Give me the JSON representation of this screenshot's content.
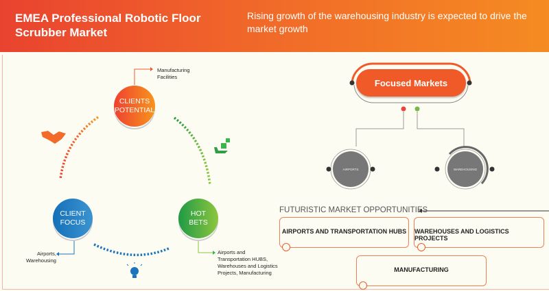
{
  "header": {
    "title": "EMEA Professional Robotic Floor Scrubber Market",
    "subtitle": "Rising growth of the warehousing industry is expected to drive the market growth"
  },
  "cycle": {
    "clients_potential": {
      "label_line1": "CLIENTS",
      "label_line2": "POTENTIAL",
      "note_line1": "Manufacturing",
      "note_line2": "Facilities",
      "color": "#f15a2b"
    },
    "client_focus": {
      "label_line1": "CLIENT",
      "label_line2": "FOCUS",
      "note_line1": "Airports,",
      "note_line2": "Warehousing",
      "color": "#1c75bc"
    },
    "hot_bets": {
      "label_line1": "HOT",
      "label_line2": "BETS",
      "note_lines": [
        "Airports and",
        "Transportation HUBS,",
        "Warehouses and Logistics",
        "Projects, Manufacturing"
      ],
      "color": "#39b54a"
    },
    "icons": [
      "handshake-icon",
      "hand-money-icon",
      "lightbulb-icon"
    ]
  },
  "focused_markets": {
    "title": "Focused Markets",
    "markets": [
      "AIRPORTS",
      "WAREHOUSING"
    ]
  },
  "opportunities": {
    "heading": "FUTURISTIC MARKET OPPORTUNITIES",
    "items": [
      "AIRPORTS AND TRANSPORTATION HUBS",
      "WAREHOUSES AND LOGISTICS PROJECTS",
      "MANUFACTURING"
    ]
  }
}
